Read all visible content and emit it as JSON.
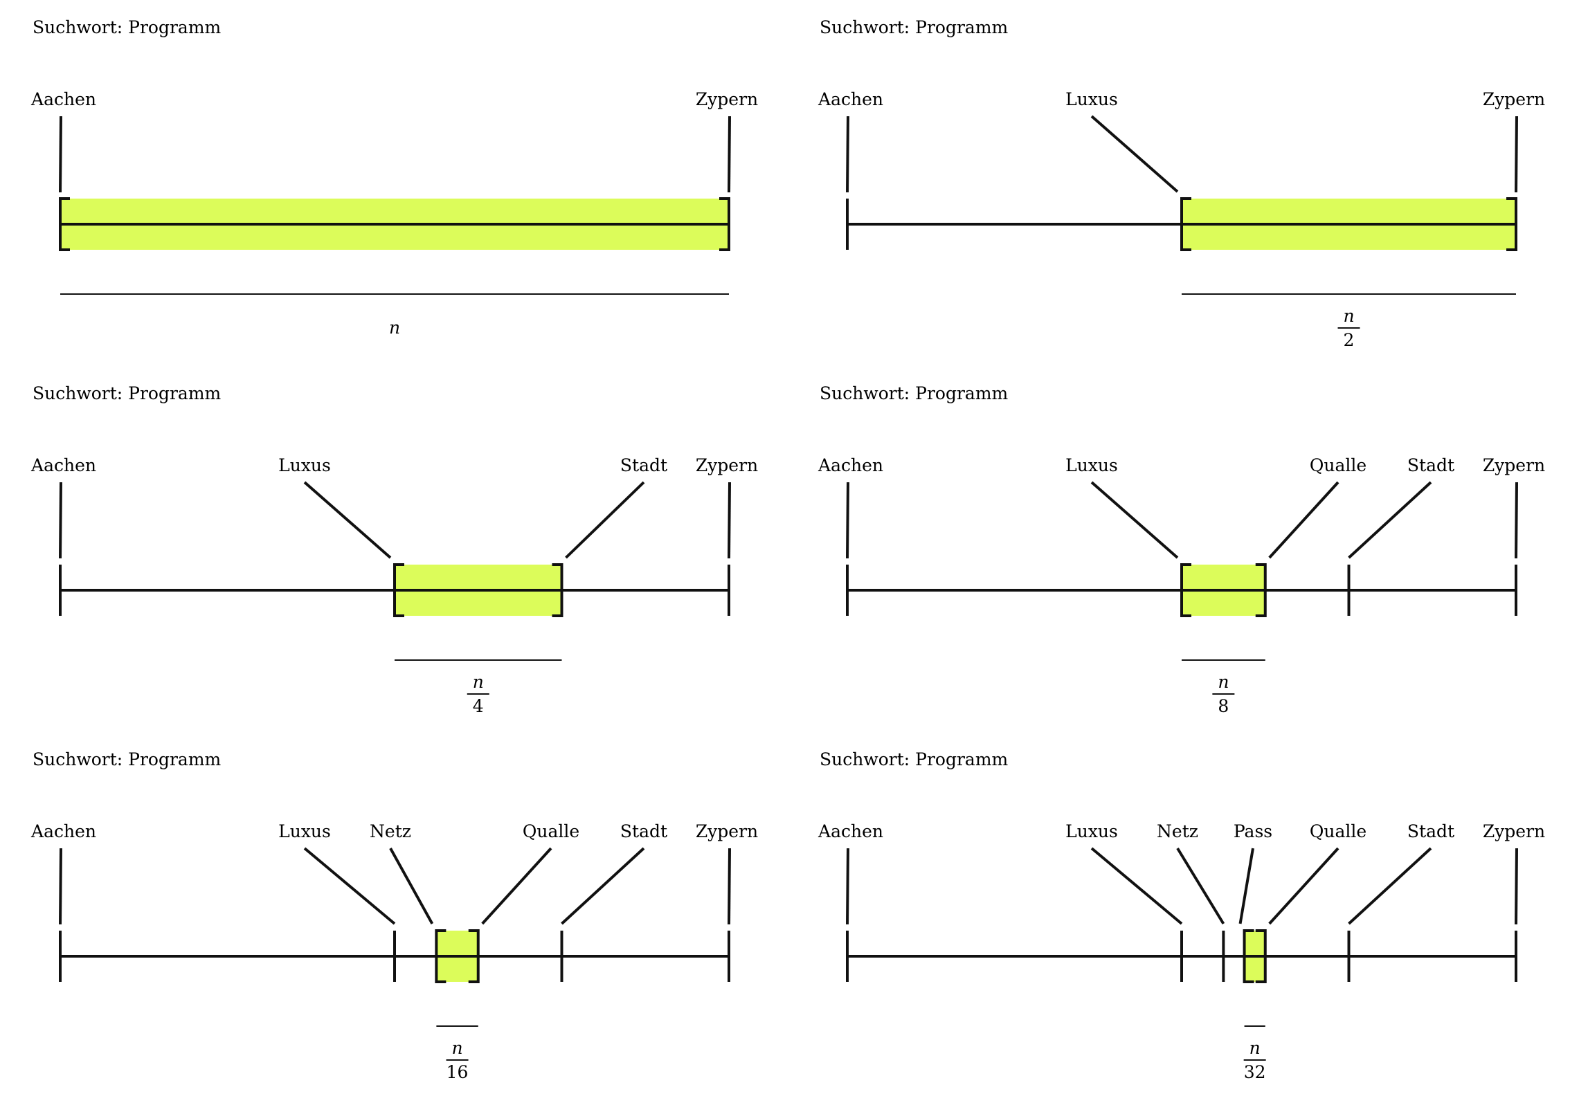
{
  "colors": {
    "highlight": "#DCFC5A",
    "line": "#111111",
    "text": "#000000"
  },
  "panels": [
    {
      "search_label": "Suchwort: Programm",
      "labels": [
        {
          "text": "Aachen",
          "pos": 0
        },
        {
          "text": "Zypern",
          "pos": 1
        }
      ],
      "interval": [
        0,
        1
      ],
      "size": {
        "num": "n",
        "den": ""
      }
    },
    {
      "search_label": "Suchwort: Programm",
      "labels": [
        {
          "text": "Aachen",
          "pos": 0
        },
        {
          "text": "Luxus",
          "pos": 0.5
        },
        {
          "text": "Zypern",
          "pos": 1
        }
      ],
      "interval": [
        0.5,
        1
      ],
      "size": {
        "num": "n",
        "den": "2"
      }
    },
    {
      "search_label": "Suchwort: Programm",
      "labels": [
        {
          "text": "Aachen",
          "pos": 0
        },
        {
          "text": "Luxus",
          "pos": 0.5
        },
        {
          "text": "Stadt",
          "pos": 0.75
        },
        {
          "text": "Zypern",
          "pos": 1
        }
      ],
      "interval": [
        0.5,
        0.75
      ],
      "size": {
        "num": "n",
        "den": "4"
      }
    },
    {
      "search_label": "Suchwort: Programm",
      "labels": [
        {
          "text": "Aachen",
          "pos": 0
        },
        {
          "text": "Luxus",
          "pos": 0.5
        },
        {
          "text": "Qualle",
          "pos": 0.625
        },
        {
          "text": "Stadt",
          "pos": 0.75
        },
        {
          "text": "Zypern",
          "pos": 1
        }
      ],
      "interval": [
        0.5,
        0.625
      ],
      "size": {
        "num": "n",
        "den": "8"
      }
    },
    {
      "search_label": "Suchwort: Programm",
      "labels": [
        {
          "text": "Aachen",
          "pos": 0
        },
        {
          "text": "Luxus",
          "pos": 0.5
        },
        {
          "text": "Netz",
          "pos": 0.5625
        },
        {
          "text": "Qualle",
          "pos": 0.625
        },
        {
          "text": "Stadt",
          "pos": 0.75
        },
        {
          "text": "Zypern",
          "pos": 1
        }
      ],
      "interval": [
        0.5625,
        0.625
      ],
      "size": {
        "num": "n",
        "den": "16"
      }
    },
    {
      "search_label": "Suchwort: Programm",
      "labels": [
        {
          "text": "Aachen",
          "pos": 0
        },
        {
          "text": "Luxus",
          "pos": 0.5
        },
        {
          "text": "Netz",
          "pos": 0.5625
        },
        {
          "text": "Pass",
          "pos": 0.59375
        },
        {
          "text": "Qualle",
          "pos": 0.625
        },
        {
          "text": "Stadt",
          "pos": 0.75
        },
        {
          "text": "Zypern",
          "pos": 1
        }
      ],
      "interval": [
        0.59375,
        0.625
      ],
      "size": {
        "num": "n",
        "den": "32"
      }
    }
  ]
}
